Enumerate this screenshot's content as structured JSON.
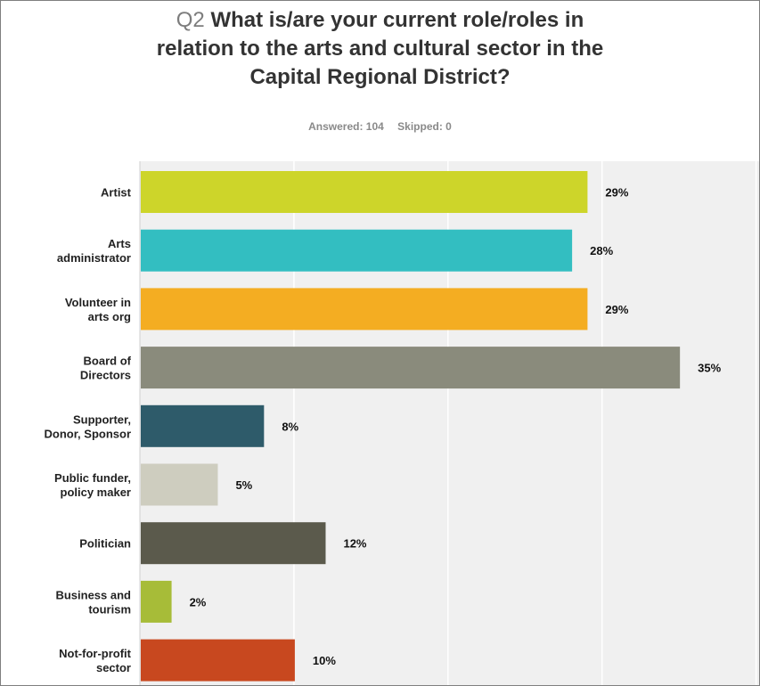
{
  "header": {
    "question_number": "Q2",
    "question_text": "What is/are your current role/roles in relation to the arts and cultural sector in the Capital Regional District?",
    "answered": "Answered: 104",
    "skipped": "Skipped: 0"
  },
  "chart_data": {
    "type": "bar",
    "orientation": "horizontal",
    "title": "Q2 What is/are your current role/roles in relation to the arts and cultural sector in the Capital Regional District?",
    "categories": [
      "Artist",
      "Arts administrator",
      "Volunteer in arts org",
      "Board of Directors",
      "Supporter, Donor, Sponsor",
      "Public funder, policy maker",
      "Politician",
      "Business and tourism",
      "Not-for-profit sector"
    ],
    "category_label_lines": [
      [
        "Artist"
      ],
      [
        "Arts",
        "administrator"
      ],
      [
        "Volunteer in",
        "arts org"
      ],
      [
        "Board of",
        "Directors"
      ],
      [
        "Supporter,",
        "Donor, Sponsor"
      ],
      [
        "Public funder,",
        "policy maker"
      ],
      [
        "Politician"
      ],
      [
        "Business and",
        "tourism"
      ],
      [
        "Not-for-profit",
        "sector"
      ]
    ],
    "values": [
      29,
      28,
      29,
      35,
      8,
      5,
      12,
      2,
      10
    ],
    "value_labels": [
      "29%",
      "28%",
      "29%",
      "35%",
      "8%",
      "5%",
      "12%",
      "2%",
      "10%"
    ],
    "colors": [
      "#cdd52a",
      "#33bec1",
      "#f4ad22",
      "#8a8b7c",
      "#2e5b6a",
      "#cecdbf",
      "#5b5a4c",
      "#a7bc38",
      "#c8481f"
    ],
    "xlim": [
      0,
      40
    ],
    "xlabel": "",
    "ylabel": "",
    "grid": true,
    "plot_background": "#f0f0f0",
    "grid_color": "#ffffff"
  }
}
